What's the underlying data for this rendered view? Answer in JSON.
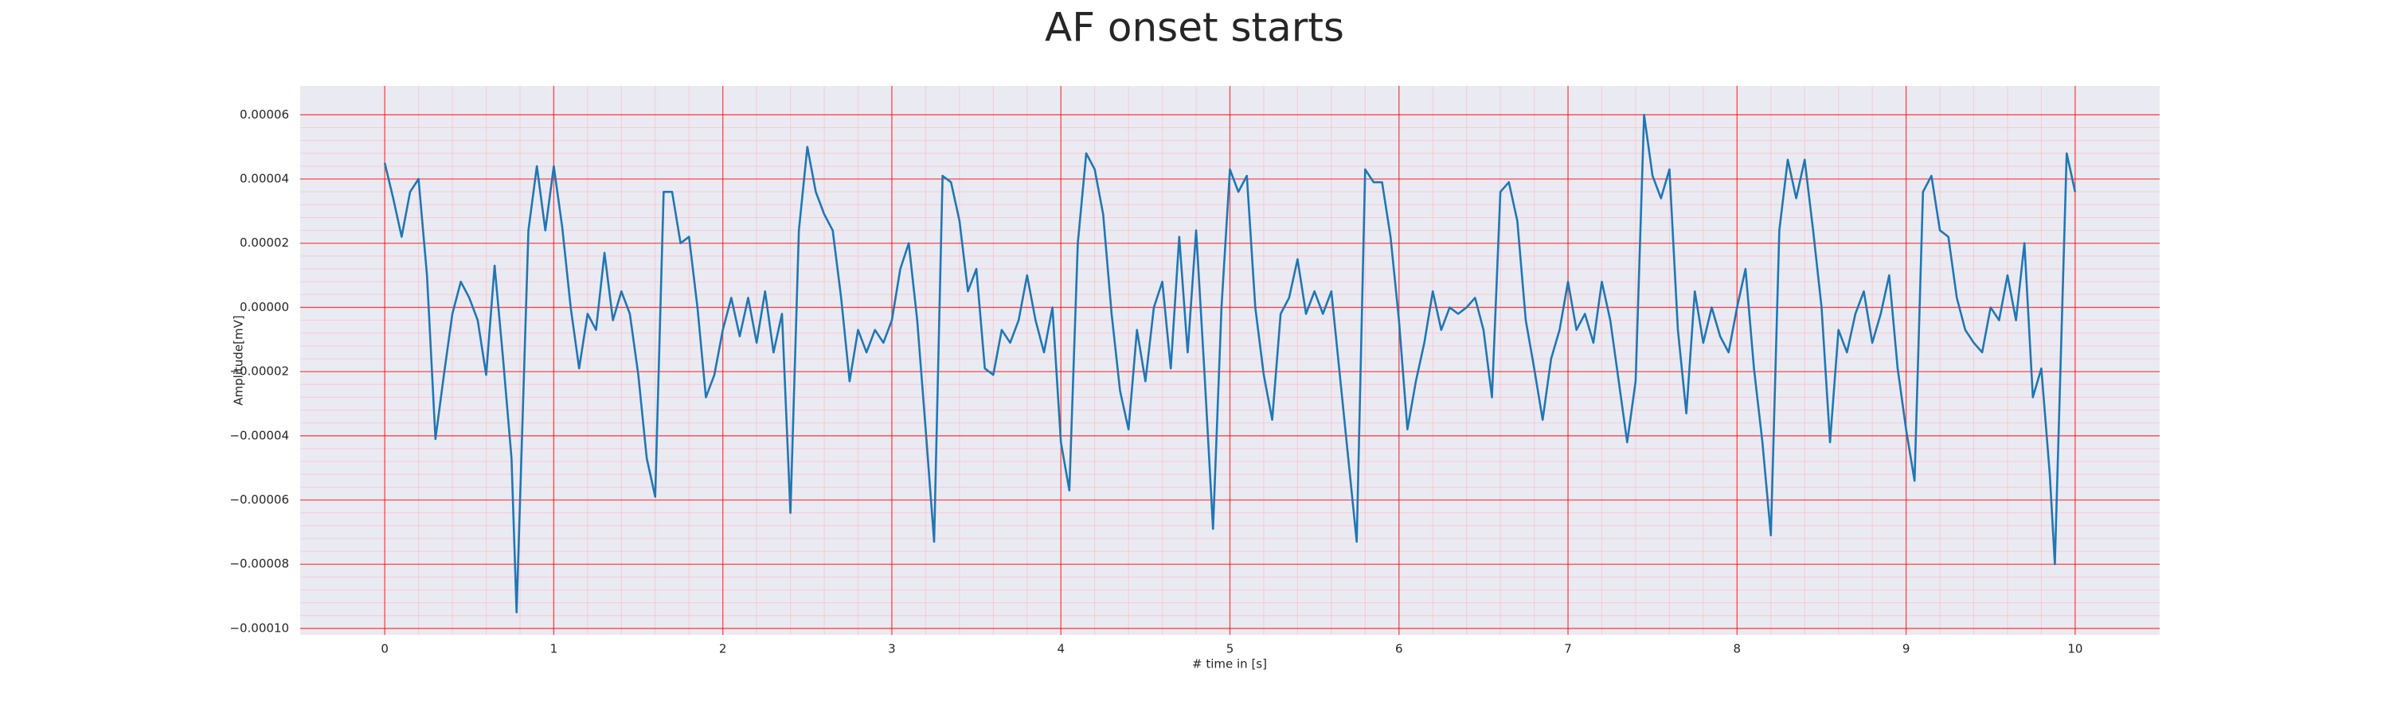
{
  "chart_data": {
    "type": "line",
    "title": "AF onset starts",
    "xlabel": "# time in [s]",
    "ylabel": "Amplitude[mV]",
    "color": "#1f77b4",
    "grid": true,
    "x": [
      0,
      0.05,
      0.1,
      0.15,
      0.2,
      0.25,
      0.3,
      0.35,
      0.4,
      0.45,
      0.5,
      0.55,
      0.6,
      0.65,
      0.7,
      0.75,
      0.78,
      0.85,
      0.9,
      0.95,
      1.0,
      1.05,
      1.1,
      1.15,
      1.2,
      1.25,
      1.3,
      1.35,
      1.4,
      1.45,
      1.5,
      1.55,
      1.6,
      1.65,
      1.7,
      1.75,
      1.8,
      1.85,
      1.9,
      1.95,
      2.0,
      2.05,
      2.1,
      2.15,
      2.2,
      2.25,
      2.3,
      2.35,
      2.4,
      2.45,
      2.5,
      2.55,
      2.6,
      2.65,
      2.7,
      2.75,
      2.8,
      2.85,
      2.9,
      2.95,
      3.0,
      3.05,
      3.1,
      3.15,
      3.2,
      3.25,
      3.3,
      3.35,
      3.4,
      3.45,
      3.5,
      3.55,
      3.6,
      3.65,
      3.7,
      3.75,
      3.8,
      3.85,
      3.9,
      3.95,
      4.0,
      4.05,
      4.1,
      4.15,
      4.2,
      4.25,
      4.3,
      4.35,
      4.4,
      4.45,
      4.5,
      4.55,
      4.6,
      4.65,
      4.7,
      4.75,
      4.8,
      4.85,
      4.9,
      4.95,
      5.0,
      5.05,
      5.1,
      5.15,
      5.2,
      5.25,
      5.3,
      5.35,
      5.4,
      5.45,
      5.5,
      5.55,
      5.6,
      5.65,
      5.7,
      5.75,
      5.8,
      5.85,
      5.9,
      5.95,
      6.0,
      6.05,
      6.1,
      6.15,
      6.2,
      6.25,
      6.3,
      6.35,
      6.4,
      6.45,
      6.5,
      6.55,
      6.6,
      6.65,
      6.7,
      6.75,
      6.8,
      6.85,
      6.9,
      6.95,
      7.0,
      7.05,
      7.1,
      7.15,
      7.2,
      7.25,
      7.3,
      7.35,
      7.4,
      7.45,
      7.5,
      7.55,
      7.6,
      7.65,
      7.7,
      7.75,
      7.8,
      7.85,
      7.9,
      7.95,
      8.0,
      8.05,
      8.1,
      8.15,
      8.2,
      8.25,
      8.3,
      8.35,
      8.4,
      8.45,
      8.5,
      8.55,
      8.6,
      8.65,
      8.7,
      8.75,
      8.8,
      8.85,
      8.9,
      8.95,
      9.0,
      9.05,
      9.1,
      9.15,
      9.2,
      9.25,
      9.3,
      9.35,
      9.4,
      9.45,
      9.5,
      9.55,
      9.6,
      9.65,
      9.7,
      9.75,
      9.8,
      9.85,
      9.88,
      9.95,
      10.0
    ],
    "values": [
      4.5e-05,
      3.4e-05,
      2.2e-05,
      3.6e-05,
      4e-05,
      1e-05,
      -4.1e-05,
      -2.1e-05,
      -2e-06,
      8e-06,
      3e-06,
      -4e-06,
      -2.1e-05,
      1.3e-05,
      -1.6e-05,
      -4.7e-05,
      -9.5e-05,
      2.4e-05,
      4.4e-05,
      2.4e-05,
      4.4e-05,
      2.5e-05,
      0,
      -1.9e-05,
      -2e-06,
      -7e-06,
      1.7e-05,
      -4e-06,
      5e-06,
      -2e-06,
      -2.1e-05,
      -4.7e-05,
      -5.9e-05,
      3.6e-05,
      3.6e-05,
      2e-05,
      2.2e-05,
      0,
      -2.8e-05,
      -2.1e-05,
      -7e-06,
      3e-06,
      -9e-06,
      3e-06,
      -1.1e-05,
      5e-06,
      -1.4e-05,
      -2e-06,
      -6.4e-05,
      2.4e-05,
      5e-05,
      3.6e-05,
      2.9e-05,
      2.4e-05,
      3e-06,
      -2.3e-05,
      -7e-06,
      -1.4e-05,
      -7e-06,
      -1.1e-05,
      -4e-06,
      1.2e-05,
      2e-05,
      -4e-06,
      -3.8e-05,
      -7.3e-05,
      4.1e-05,
      3.9e-05,
      2.7e-05,
      5e-06,
      1.2e-05,
      -1.9e-05,
      -2.1e-05,
      -7e-06,
      -1.1e-05,
      -4e-06,
      1e-05,
      -4e-06,
      -1.4e-05,
      0,
      -4.2e-05,
      -5.7e-05,
      2e-05,
      4.8e-05,
      4.3e-05,
      2.9e-05,
      -2e-06,
      -2.6e-05,
      -3.8e-05,
      -7e-06,
      -2.3e-05,
      0,
      8e-06,
      -1.9e-05,
      2.2e-05,
      -1.4e-05,
      2.4e-05,
      -2.1e-05,
      -6.9e-05,
      0,
      4.3e-05,
      3.6e-05,
      4.1e-05,
      0,
      -2.1e-05,
      -3.5e-05,
      -2e-06,
      3e-06,
      1.5e-05,
      -2e-06,
      5e-06,
      -2e-06,
      5e-06,
      -2.1e-05,
      -4.7e-05,
      -7.3e-05,
      4.3e-05,
      3.9e-05,
      3.9e-05,
      2.2e-05,
      -4e-06,
      -3.8e-05,
      -2.3e-05,
      -1.1e-05,
      5e-06,
      -7e-06,
      0,
      -2e-06,
      0,
      3e-06,
      -7e-06,
      -2.8e-05,
      3.6e-05,
      3.9e-05,
      2.7e-05,
      -4e-06,
      -1.9e-05,
      -3.5e-05,
      -1.6e-05,
      -7e-06,
      8e-06,
      -7e-06,
      -2e-06,
      -1.1e-05,
      8e-06,
      -4e-06,
      -2.3e-05,
      -4.2e-05,
      -2.3e-05,
      6e-05,
      4.1e-05,
      3.4e-05,
      4.3e-05,
      -7e-06,
      -3.3e-05,
      5e-06,
      -1.1e-05,
      0,
      -9e-06,
      -1.4e-05,
      0,
      1.2e-05,
      -1.9e-05,
      -4.2e-05,
      -7.1e-05,
      2.4e-05,
      4.6e-05,
      3.4e-05,
      4.6e-05,
      2.4e-05,
      0,
      -4.2e-05,
      -7e-06,
      -1.4e-05,
      -2e-06,
      5e-06,
      -1.1e-05,
      -2e-06,
      1e-05,
      -1.9e-05,
      -3.8e-05,
      -5.4e-05,
      3.6e-05,
      4.1e-05,
      2.4e-05,
      2.2e-05,
      3e-06,
      -7e-06,
      -1.1e-05,
      -1.4e-05,
      0,
      -4e-06,
      1e-05,
      -4e-06,
      2e-05,
      -2.8e-05,
      -1.9e-05,
      -5.2e-05,
      -8e-05,
      4.8e-05,
      3.6e-05
    ],
    "xlim": [
      -0.5,
      10.5
    ],
    "xticks": [
      0,
      1,
      2,
      3,
      4,
      5,
      6,
      7,
      8,
      9,
      10
    ],
    "ylim": [
      -0.000102,
      6.9e-05
    ],
    "yticks": [
      {
        "value": -0.0001,
        "label": "−0.00010"
      },
      {
        "value": -8e-05,
        "label": "−0.00008"
      },
      {
        "value": -6e-05,
        "label": "−0.00006"
      },
      {
        "value": -4e-05,
        "label": "−0.00004"
      },
      {
        "value": -2e-05,
        "label": "−0.00002"
      },
      {
        "value": 0,
        "label": "0.00000"
      },
      2e-05,
      4e-05,
      6e-05
    ]
  }
}
